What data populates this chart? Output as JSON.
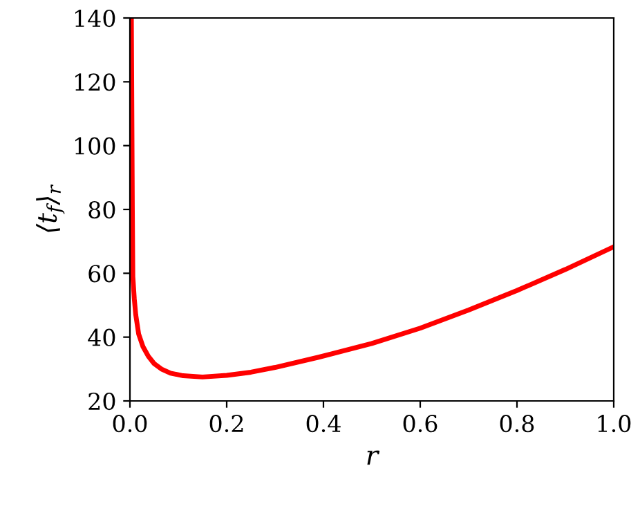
{
  "chart_data": {
    "type": "line",
    "xlabel": "r",
    "ylabel": "⟨t$_{f}$⟩$_{r}$",
    "xlim": [
      0.0,
      1.0
    ],
    "ylim": [
      20,
      140
    ],
    "xticks": [
      {
        "value": 0.0,
        "label": "0.0"
      },
      {
        "value": 0.2,
        "label": "0.2"
      },
      {
        "value": 0.4,
        "label": "0.4"
      },
      {
        "value": 0.6,
        "label": "0.6"
      },
      {
        "value": 0.8,
        "label": "0.8"
      },
      {
        "value": 1.0,
        "label": "1.0"
      }
    ],
    "yticks": [
      20,
      40,
      60,
      80,
      100,
      120,
      140
    ],
    "grid": false,
    "series": [
      {
        "color": "#ff0000",
        "x": [
          0.003,
          0.005,
          0.006,
          0.009,
          0.012,
          0.018,
          0.027,
          0.038,
          0.05,
          0.065,
          0.084,
          0.11,
          0.15,
          0.2,
          0.25,
          0.3,
          0.39,
          0.5,
          0.6,
          0.7,
          0.8,
          0.9,
          1.0
        ],
        "values": [
          140,
          80,
          59,
          52,
          47,
          41,
          37,
          34,
          31.7,
          30,
          28.7,
          27.9,
          27.5,
          28,
          29,
          30.5,
          33.7,
          38,
          42.8,
          48.5,
          54.6,
          61.2,
          68.3
        ]
      }
    ]
  }
}
